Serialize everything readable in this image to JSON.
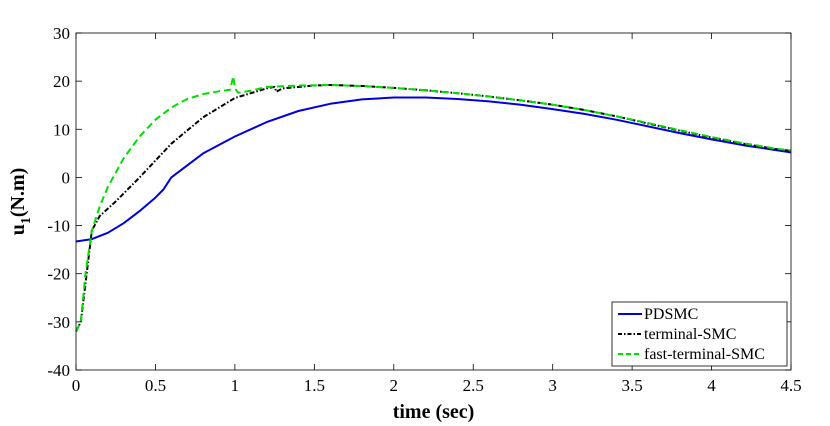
{
  "chart_data": {
    "type": "line",
    "xlabel": "time (sec)",
    "ylabel_main": "u",
    "ylabel_sub": "1",
    "ylabel_unit": "(N.m)",
    "xlim": [
      0,
      4.5
    ],
    "ylim": [
      -40,
      30
    ],
    "xticks": [
      0,
      0.5,
      1,
      1.5,
      2,
      2.5,
      3,
      3.5,
      4,
      4.5
    ],
    "xtick_labels": [
      "0",
      "0.5",
      "1",
      "1.5",
      "2",
      "2.5",
      "3",
      "3.5",
      "4",
      "4.5"
    ],
    "yticks": [
      -40,
      -30,
      -20,
      -10,
      0,
      10,
      20,
      30
    ],
    "ytick_labels": [
      "-40",
      "-30",
      "-20",
      "-10",
      "0",
      "10",
      "20",
      "30"
    ],
    "grid": false,
    "legend_position": "bottom-right",
    "series": [
      {
        "name": "PDSMC",
        "color": "#0000dd",
        "style": "solid",
        "points": [
          [
            0,
            -13.3
          ],
          [
            0.1,
            -12.8
          ],
          [
            0.2,
            -11.5
          ],
          [
            0.3,
            -9.5
          ],
          [
            0.4,
            -7
          ],
          [
            0.5,
            -4.2
          ],
          [
            0.55,
            -2.5
          ],
          [
            0.6,
            0
          ],
          [
            0.7,
            2.5
          ],
          [
            0.8,
            5
          ],
          [
            1.0,
            8.5
          ],
          [
            1.2,
            11.5
          ],
          [
            1.4,
            13.8
          ],
          [
            1.6,
            15.3
          ],
          [
            1.8,
            16.2
          ],
          [
            2.0,
            16.6
          ],
          [
            2.2,
            16.6
          ],
          [
            2.4,
            16.3
          ],
          [
            2.6,
            15.8
          ],
          [
            2.8,
            15.1
          ],
          [
            3.0,
            14.2
          ],
          [
            3.2,
            13.2
          ],
          [
            3.4,
            12.0
          ],
          [
            3.6,
            10.6
          ],
          [
            3.8,
            9.2
          ],
          [
            4.0,
            7.9
          ],
          [
            4.2,
            6.7
          ],
          [
            4.4,
            5.7
          ],
          [
            4.5,
            5.2
          ]
        ]
      },
      {
        "name": "terminal-SMC",
        "color": "#000000",
        "style": "dashdot",
        "points": [
          [
            0,
            -32
          ],
          [
            0.03,
            -30
          ],
          [
            0.06,
            -22
          ],
          [
            0.1,
            -11
          ],
          [
            0.15,
            -8
          ],
          [
            0.25,
            -5
          ],
          [
            0.4,
            0
          ],
          [
            0.5,
            3.5
          ],
          [
            0.6,
            7
          ],
          [
            0.8,
            12.5
          ],
          [
            1.0,
            16.5
          ],
          [
            1.2,
            18.5
          ],
          [
            1.25,
            18.8
          ],
          [
            1.26,
            17.8
          ],
          [
            1.3,
            18.5
          ],
          [
            1.5,
            19.1
          ],
          [
            1.6,
            19.2
          ],
          [
            1.8,
            19.0
          ],
          [
            2.0,
            18.6
          ],
          [
            2.2,
            18.1
          ],
          [
            2.4,
            17.5
          ],
          [
            2.6,
            16.8
          ],
          [
            2.8,
            16.0
          ],
          [
            3.0,
            15.1
          ],
          [
            3.2,
            14.0
          ],
          [
            3.4,
            12.7
          ],
          [
            3.6,
            11.2
          ],
          [
            3.8,
            9.7
          ],
          [
            4.0,
            8.3
          ],
          [
            4.2,
            7.0
          ],
          [
            4.4,
            5.9
          ],
          [
            4.5,
            5.5
          ]
        ]
      },
      {
        "name": "fast-terminal-SMC",
        "color": "#00dd00",
        "style": "dashed",
        "points": [
          [
            0,
            -32
          ],
          [
            0.03,
            -30
          ],
          [
            0.06,
            -20
          ],
          [
            0.1,
            -11
          ],
          [
            0.15,
            -6
          ],
          [
            0.2,
            -2
          ],
          [
            0.3,
            4
          ],
          [
            0.4,
            8.5
          ],
          [
            0.5,
            12
          ],
          [
            0.6,
            14.5
          ],
          [
            0.7,
            16.3
          ],
          [
            0.8,
            17.3
          ],
          [
            0.9,
            17.9
          ],
          [
            0.97,
            18.2
          ],
          [
            0.99,
            21
          ],
          [
            1.0,
            18.5
          ],
          [
            1.02,
            17.6
          ],
          [
            1.1,
            18.0
          ],
          [
            1.2,
            18.8
          ],
          [
            1.4,
            19.1
          ],
          [
            1.6,
            19.2
          ],
          [
            1.8,
            19.0
          ],
          [
            2.0,
            18.6
          ],
          [
            2.2,
            18.1
          ],
          [
            2.4,
            17.5
          ],
          [
            2.6,
            16.8
          ],
          [
            2.8,
            16.0
          ],
          [
            3.0,
            15.1
          ],
          [
            3.2,
            14.0
          ],
          [
            3.4,
            12.7
          ],
          [
            3.6,
            11.3
          ],
          [
            3.8,
            9.8
          ],
          [
            4.0,
            8.4
          ],
          [
            4.2,
            7.1
          ],
          [
            4.4,
            6.0
          ],
          [
            4.5,
            5.6
          ]
        ]
      }
    ]
  }
}
